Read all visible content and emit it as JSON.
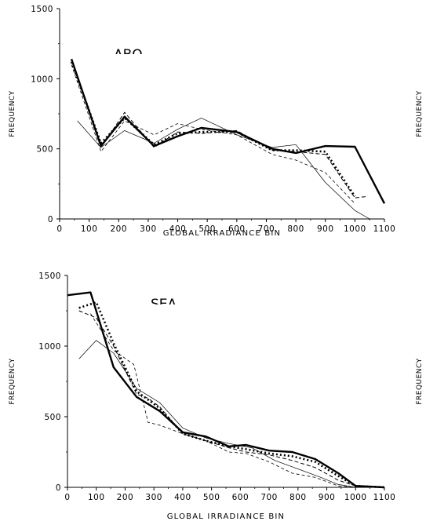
{
  "chart_data": [
    {
      "type": "line",
      "title": "ABQ",
      "xlabel": "GLOBAL IRRADIANCE BIN",
      "ylabel": "FREQUENCY",
      "right_ylabel": "FREQUENCY",
      "xlim": [
        0,
        1100
      ],
      "ylim": [
        0,
        1500
      ],
      "xticks": [
        "0",
        "100",
        "200",
        "300",
        "400",
        "500",
        "600",
        "700",
        "800",
        "900",
        "1000",
        "1100"
      ],
      "yticks": [
        "0",
        "500",
        "1000",
        "1500"
      ],
      "grid": false,
      "series": [
        {
          "style": "thick-solid",
          "x": [
            40,
            140,
            220,
            320,
            400,
            480,
            600,
            720,
            800,
            900,
            1000,
            1100
          ],
          "y": [
            1140,
            520,
            730,
            520,
            590,
            650,
            620,
            500,
            470,
            520,
            515,
            110
          ]
        },
        {
          "style": "thick-dotted",
          "x": [
            40,
            140,
            220,
            320,
            400,
            480,
            600,
            720,
            800,
            900,
            1000
          ],
          "y": [
            1120,
            540,
            720,
            530,
            610,
            620,
            620,
            490,
            490,
            480,
            160
          ]
        },
        {
          "style": "thin-dashed",
          "x": [
            40,
            140,
            220,
            320,
            400,
            480,
            600,
            720,
            800,
            900,
            1000,
            1040
          ],
          "y": [
            1130,
            510,
            760,
            510,
            620,
            610,
            630,
            490,
            480,
            460,
            150,
            160
          ]
        },
        {
          "style": "thin-dashed-2",
          "x": [
            40,
            140,
            220,
            320,
            400,
            480,
            600,
            720,
            800,
            900,
            1000
          ],
          "y": [
            1100,
            480,
            700,
            600,
            680,
            640,
            600,
            460,
            420,
            330,
            110
          ]
        },
        {
          "style": "thin-solid",
          "x": [
            60,
            140,
            220,
            320,
            400,
            480,
            600,
            720,
            800,
            900,
            1000,
            1050
          ],
          "y": [
            700,
            510,
            630,
            540,
            640,
            720,
            600,
            510,
            530,
            260,
            60,
            0
          ]
        }
      ]
    },
    {
      "type": "line",
      "title": "SEA",
      "xlabel": "GLOBAL IRRADIANCE BIN",
      "ylabel": "FREQUENCY",
      "right_ylabel": "FREQUENCY",
      "xlim": [
        0,
        1100
      ],
      "ylim": [
        0,
        1500
      ],
      "xticks": [
        "0",
        "100",
        "200",
        "300",
        "400",
        "500",
        "600",
        "700",
        "800",
        "900",
        "1000",
        "1100"
      ],
      "yticks": [
        "0",
        "500",
        "1000",
        "1500"
      ],
      "grid": false,
      "series": [
        {
          "style": "thick-solid",
          "x": [
            0,
            80,
            160,
            240,
            320,
            400,
            480,
            560,
            620,
            700,
            780,
            860,
            940,
            1000,
            1100
          ],
          "y": [
            1360,
            1380,
            850,
            640,
            540,
            390,
            360,
            290,
            300,
            260,
            250,
            200,
            100,
            10,
            0
          ]
        },
        {
          "style": "thick-dotted",
          "x": [
            40,
            100,
            160,
            240,
            320,
            400,
            480,
            560,
            620,
            700,
            780,
            860,
            940,
            1000,
            1100
          ],
          "y": [
            1270,
            1310,
            1020,
            680,
            560,
            380,
            330,
            290,
            270,
            240,
            220,
            180,
            80,
            10,
            0
          ]
        },
        {
          "style": "thin-dashed",
          "x": [
            40,
            100,
            160,
            240,
            280,
            320,
            400,
            480,
            560,
            620,
            700,
            780,
            860,
            940,
            1000,
            1100
          ],
          "y": [
            1250,
            1200,
            1000,
            660,
            630,
            570,
            380,
            330,
            280,
            250,
            230,
            190,
            140,
            50,
            10,
            0
          ]
        },
        {
          "style": "thin-dashed-2",
          "x": [
            80,
            160,
            230,
            280,
            320,
            400,
            480,
            560,
            620,
            700,
            780,
            860,
            940,
            1000,
            1100
          ],
          "y": [
            1230,
            970,
            870,
            460,
            440,
            380,
            330,
            250,
            240,
            180,
            100,
            70,
            10,
            0,
            0
          ]
        },
        {
          "style": "thin-solid",
          "x": [
            40,
            100,
            160,
            240,
            320,
            400,
            480,
            560,
            640,
            720,
            800,
            880,
            940,
            1000,
            1100
          ],
          "y": [
            910,
            1040,
            950,
            700,
            600,
            420,
            350,
            310,
            280,
            190,
            130,
            70,
            20,
            0,
            0
          ]
        }
      ]
    }
  ]
}
